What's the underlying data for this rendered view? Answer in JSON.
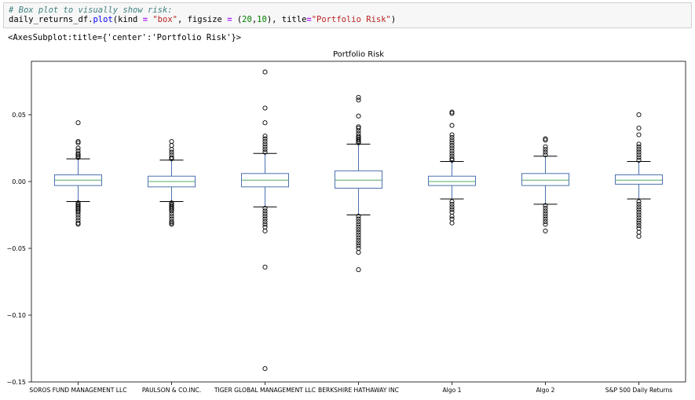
{
  "code": {
    "comment": "# Box plot to visually show risk:",
    "line2_prefix": "daily_returns_df.",
    "line2_fn": "plot",
    "line2_open": "(kind ",
    "eq1": "=",
    "kind_value": "\"box\"",
    "sep1": ", figsize ",
    "eq2": "=",
    "tuple_open": " (",
    "fig_w": "20",
    "tuple_sep": ",",
    "fig_h": "10",
    "tuple_close": "), title",
    "eq3": "=",
    "title_value": "\"Portfolio Risk\"",
    "line2_close": ")"
  },
  "output": {
    "text": "<AxesSubplot:title={'center':'Portfolio Risk'}>"
  },
  "chart_data": {
    "type": "box",
    "title": "Portfolio Risk",
    "xlabel": "",
    "ylabel": "",
    "ylim": [
      -0.15,
      0.09
    ],
    "yticks": [
      -0.15,
      -0.1,
      -0.05,
      0.0,
      0.05
    ],
    "ytick_labels": [
      "−0.15",
      "−0.10",
      "−0.05",
      "0.00",
      "0.05"
    ],
    "grid": false,
    "colors": {
      "box": "#4c72b0",
      "median": "#55a868",
      "whisker": "#4c72b0",
      "cap": "#000000",
      "flier": "#000000"
    },
    "categories": [
      "SOROS FUND MANAGEMENT LLC",
      "PAULSON & CO.INC.",
      "TIGER GLOBAL MANAGEMENT LLC",
      "BERKSHIRE HATHAWAY INC",
      "Algo 1",
      "Algo 2",
      "S&P 500 Daily Returns"
    ],
    "boxes": [
      {
        "q1": -0.003,
        "median": 0.001,
        "q3": 0.005,
        "whisker_low": -0.015,
        "whisker_high": 0.017,
        "fliers": [
          0.044,
          0.03,
          0.029,
          0.025,
          0.023,
          0.021,
          0.02,
          0.019,
          0.018,
          -0.016,
          -0.017,
          -0.018,
          -0.019,
          -0.02,
          -0.021,
          -0.022,
          -0.023,
          -0.025,
          -0.027,
          -0.029,
          -0.031,
          -0.032
        ]
      },
      {
        "q1": -0.004,
        "median": 0.0,
        "q3": 0.004,
        "whisker_low": -0.015,
        "whisker_high": 0.016,
        "fliers": [
          0.03,
          0.027,
          0.024,
          0.022,
          0.02,
          0.018,
          0.017,
          -0.016,
          -0.017,
          -0.018,
          -0.019,
          -0.02,
          -0.021,
          -0.022,
          -0.024,
          -0.026,
          -0.028,
          -0.03,
          -0.031,
          -0.032
        ]
      },
      {
        "q1": -0.004,
        "median": 0.001,
        "q3": 0.006,
        "whisker_low": -0.019,
        "whisker_high": 0.021,
        "fliers": [
          0.082,
          0.055,
          0.044,
          0.034,
          0.032,
          0.03,
          0.028,
          0.026,
          0.024,
          0.022,
          -0.02,
          -0.022,
          -0.024,
          -0.026,
          -0.028,
          -0.03,
          -0.032,
          -0.034,
          -0.037,
          -0.064,
          -0.14
        ]
      },
      {
        "q1": -0.005,
        "median": 0.001,
        "q3": 0.008,
        "whisker_low": -0.025,
        "whisker_high": 0.028,
        "fliers": [
          0.063,
          0.061,
          0.049,
          0.041,
          0.04,
          0.038,
          0.036,
          0.034,
          0.033,
          0.032,
          0.031,
          0.03,
          0.029,
          -0.026,
          -0.028,
          -0.03,
          -0.032,
          -0.034,
          -0.036,
          -0.038,
          -0.04,
          -0.042,
          -0.044,
          -0.046,
          -0.048,
          -0.05,
          -0.053,
          -0.066
        ]
      },
      {
        "q1": -0.003,
        "median": 0.0,
        "q3": 0.004,
        "whisker_low": -0.013,
        "whisker_high": 0.015,
        "fliers": [
          0.052,
          0.051,
          0.042,
          0.035,
          0.033,
          0.031,
          0.029,
          0.027,
          0.025,
          0.023,
          0.021,
          0.019,
          0.017,
          0.016,
          -0.015,
          -0.017,
          -0.019,
          -0.021,
          -0.023,
          -0.026,
          -0.028,
          -0.031
        ]
      },
      {
        "q1": -0.003,
        "median": 0.001,
        "q3": 0.006,
        "whisker_low": -0.017,
        "whisker_high": 0.019,
        "fliers": [
          0.032,
          0.031,
          0.026,
          0.024,
          0.022,
          0.02,
          -0.018,
          -0.02,
          -0.022,
          -0.024,
          -0.026,
          -0.028,
          -0.03,
          -0.032,
          -0.037
        ]
      },
      {
        "q1": -0.002,
        "median": 0.001,
        "q3": 0.005,
        "whisker_low": -0.013,
        "whisker_high": 0.015,
        "fliers": [
          0.05,
          0.04,
          0.035,
          0.028,
          0.026,
          0.024,
          0.022,
          0.02,
          0.018,
          0.016,
          -0.015,
          -0.017,
          -0.019,
          -0.021,
          -0.023,
          -0.025,
          -0.027,
          -0.029,
          -0.031,
          -0.033,
          -0.035,
          -0.038,
          -0.041
        ]
      }
    ]
  }
}
